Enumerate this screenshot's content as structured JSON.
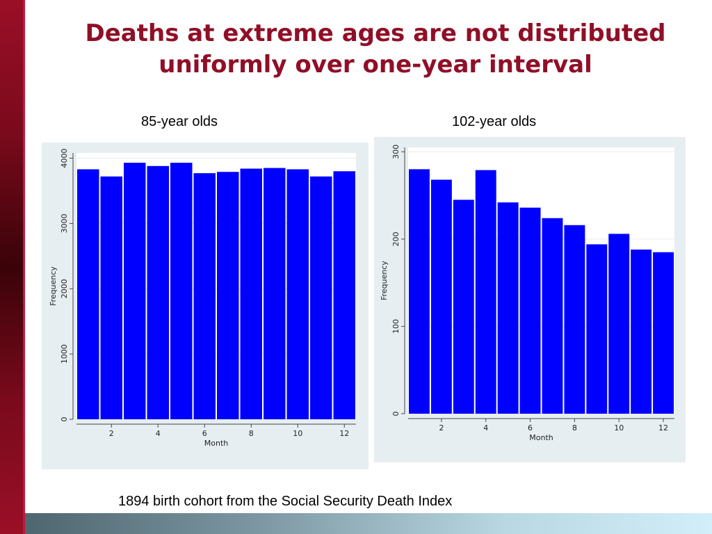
{
  "slide": {
    "title_line1": "Deaths at extreme ages are not distributed",
    "title_line2": "uniformly over one-year interval",
    "footnote": "1894 birth cohort from the Social Security Death Index"
  },
  "colors": {
    "bar_fill": "#0000ff",
    "title": "#900f27",
    "panel_background": "#e6eef2",
    "plot_background": "#ffffff",
    "side_bar": "#7a0a1c"
  },
  "chart_data": [
    {
      "type": "bar",
      "title": "85-year olds",
      "xlabel": "Month",
      "ylabel": "Frequency",
      "categories": [
        1,
        2,
        3,
        4,
        5,
        6,
        7,
        8,
        9,
        10,
        11,
        12
      ],
      "values": [
        3830,
        3720,
        3930,
        3880,
        3930,
        3770,
        3790,
        3840,
        3850,
        3830,
        3720,
        3800
      ],
      "xticks": [
        2,
        4,
        6,
        8,
        10,
        12
      ],
      "yticks": [
        0,
        1000,
        2000,
        3000,
        4000
      ],
      "xlim": [
        0.5,
        12.5
      ],
      "ylim": [
        0,
        4080
      ],
      "grid": true
    },
    {
      "type": "bar",
      "title": "102-year olds",
      "xlabel": "Month",
      "ylabel": "Frequency",
      "categories": [
        1,
        2,
        3,
        4,
        5,
        6,
        7,
        8,
        9,
        10,
        11,
        12
      ],
      "values": [
        280,
        268,
        245,
        279,
        242,
        236,
        224,
        216,
        194,
        206,
        188,
        185
      ],
      "xticks": [
        2,
        4,
        6,
        8,
        10,
        12
      ],
      "yticks": [
        0,
        100,
        200,
        300
      ],
      "xlim": [
        0.5,
        12.5
      ],
      "ylim": [
        0,
        305
      ],
      "grid": true
    }
  ]
}
